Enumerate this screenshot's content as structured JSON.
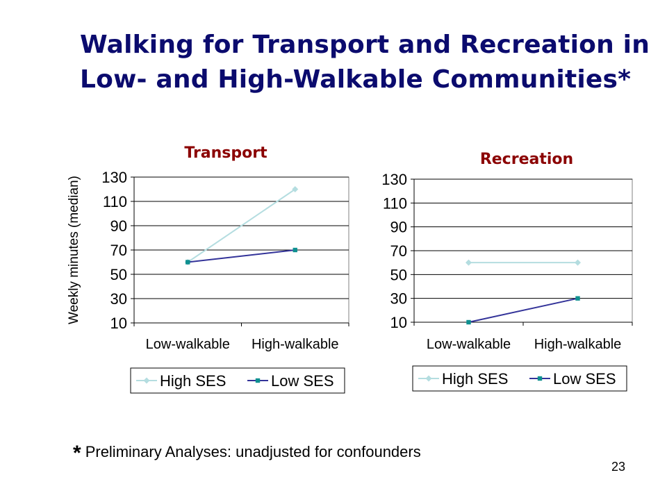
{
  "slide": {
    "title_line1": "Walking for Transport and Recreation in",
    "title_line2": "Low- and High-Walkable Communities*",
    "footnote_star": "*",
    "footnote_text": "Preliminary Analyses: unadjusted for confounders",
    "page_number": "23"
  },
  "colors": {
    "title": "#0b0b6e",
    "chart_title": "#8b0000",
    "high_ses": "#b4dde0",
    "low_ses": "#333399",
    "low_ses_marker": "#0e9090"
  },
  "chart_data": [
    {
      "type": "line",
      "title": "Transport",
      "ylabel": "Weekly minutes (median)",
      "xlabel": "",
      "categories": [
        "Low-walkable",
        "High-walkable"
      ],
      "yticks": [
        10,
        30,
        50,
        70,
        90,
        110,
        130
      ],
      "ylim": [
        10,
        130
      ],
      "grid": true,
      "legend": "bottom",
      "series": [
        {
          "name": "High SES",
          "values": [
            60,
            120
          ],
          "marker": "diamond"
        },
        {
          "name": "Low SES",
          "values": [
            60,
            70
          ],
          "marker": "square"
        }
      ]
    },
    {
      "type": "line",
      "title": "Recreation",
      "ylabel": "",
      "xlabel": "",
      "categories": [
        "Low-walkable",
        "High-walkable"
      ],
      "yticks": [
        10,
        30,
        50,
        70,
        90,
        110,
        130
      ],
      "ylim": [
        10,
        130
      ],
      "grid": true,
      "legend": "bottom",
      "series": [
        {
          "name": "High SES",
          "values": [
            60,
            60
          ],
          "marker": "diamond"
        },
        {
          "name": "Low SES",
          "values": [
            10,
            30
          ],
          "marker": "square"
        }
      ]
    }
  ]
}
